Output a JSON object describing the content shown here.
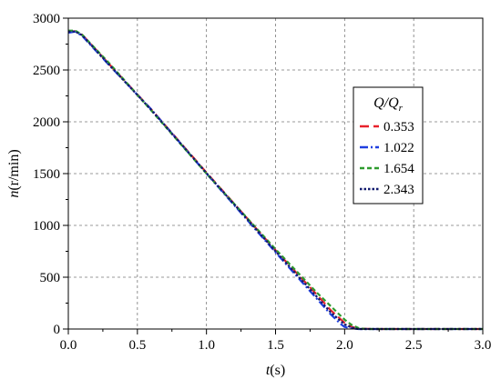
{
  "chart_data": {
    "type": "line",
    "xlabel_var": "t",
    "xlabel_unit": "(s)",
    "ylabel_var": "n",
    "ylabel_unit": "(r/min)",
    "xlim": [
      0,
      3.0
    ],
    "ylim": [
      0,
      3000
    ],
    "x_ticks": [
      "0.0",
      "0.5",
      "1.0",
      "1.5",
      "2.0",
      "2.5",
      "3.0"
    ],
    "y_ticks": [
      "0",
      "500",
      "1000",
      "1500",
      "2000",
      "2500",
      "3000"
    ],
    "grid": true,
    "legend": {
      "title": "Q/Qr",
      "title_main": "Q/Q",
      "title_sub": "r",
      "placement": "right"
    },
    "series": [
      {
        "name": "0.353",
        "color": "#e8212b",
        "dash": "long-dash",
        "x": [
          0.0,
          0.05,
          0.1,
          0.3,
          0.6,
          1.0,
          1.5,
          1.8,
          1.9,
          2.0,
          2.05,
          2.1,
          2.2,
          3.0
        ],
        "y": [
          2870,
          2875,
          2840,
          2550,
          2120,
          1510,
          760,
          330,
          180,
          60,
          20,
          5,
          0,
          0
        ]
      },
      {
        "name": "1.022",
        "color": "#1f3fe0",
        "dash": "dash-dot",
        "x": [
          0.0,
          0.05,
          0.1,
          0.3,
          0.6,
          1.0,
          1.5,
          1.8,
          1.9,
          1.97,
          2.0,
          2.05,
          2.1,
          3.0
        ],
        "y": [
          2860,
          2870,
          2830,
          2540,
          2120,
          1500,
          740,
          290,
          140,
          50,
          20,
          5,
          0,
          0
        ]
      },
      {
        "name": "1.654",
        "color": "#2e9b2e",
        "dash": "short-dash",
        "x": [
          0.0,
          0.05,
          0.1,
          0.3,
          0.6,
          1.0,
          1.5,
          1.8,
          1.9,
          2.0,
          2.05,
          2.1,
          2.15,
          3.0
        ],
        "y": [
          2880,
          2880,
          2840,
          2560,
          2110,
          1500,
          770,
          350,
          220,
          90,
          40,
          10,
          0,
          0
        ]
      },
      {
        "name": "2.343",
        "color": "#111a6e",
        "dash": "dot",
        "x": [
          0.0,
          0.05,
          0.1,
          0.3,
          0.6,
          1.0,
          1.5,
          1.8,
          1.9,
          2.0,
          2.05,
          2.1,
          3.0
        ],
        "y": [
          2870,
          2872,
          2835,
          2545,
          2115,
          1505,
          750,
          310,
          160,
          45,
          15,
          0,
          0
        ]
      }
    ]
  }
}
